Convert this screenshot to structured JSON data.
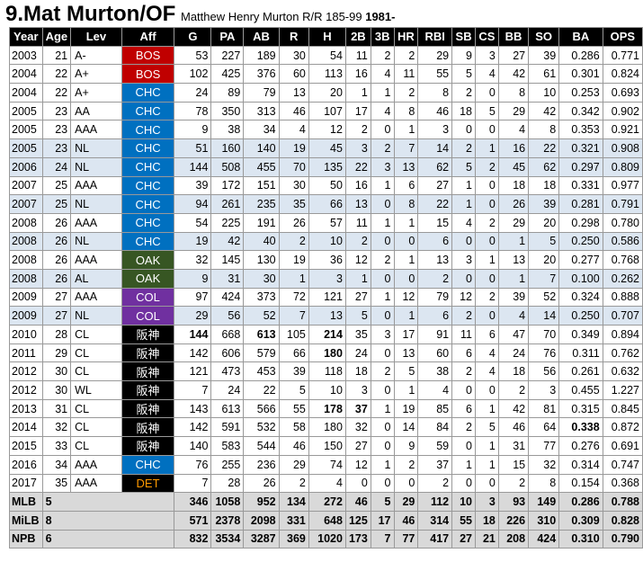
{
  "header": {
    "title": "9.Mat Murton/OF",
    "subtitle": "Matthew Henry Murton R/R 185-99",
    "birth": "1981-"
  },
  "columns": [
    "Year",
    "Age",
    "Lev",
    "Aff",
    "G",
    "PA",
    "AB",
    "R",
    "H",
    "2B",
    "3B",
    "HR",
    "RBI",
    "SB",
    "CS",
    "BB",
    "SO",
    "BA",
    "OPS"
  ],
  "team_colors": {
    "BOS": "#c00000",
    "CHC": "#0070c0",
    "OAK": "#375623",
    "COL": "#7030a0",
    "阪神": "#000000",
    "DET": "#000000"
  },
  "team_text_colors": {
    "DET": "#ff9900"
  },
  "rows": [
    {
      "style": "milb",
      "cells": [
        "2003",
        "21",
        "A-",
        "BOS",
        "53",
        "227",
        "189",
        "30",
        "54",
        "11",
        "2",
        "2",
        "29",
        "9",
        "3",
        "27",
        "39",
        "0.286",
        "0.771"
      ]
    },
    {
      "style": "milb",
      "cells": [
        "2004",
        "22",
        "A+",
        "BOS",
        "102",
        "425",
        "376",
        "60",
        "113",
        "16",
        "4",
        "11",
        "55",
        "5",
        "4",
        "42",
        "61",
        "0.301",
        "0.824"
      ]
    },
    {
      "style": "milb",
      "cells": [
        "2004",
        "22",
        "A+",
        "CHC",
        "24",
        "89",
        "79",
        "13",
        "20",
        "1",
        "1",
        "2",
        "8",
        "2",
        "0",
        "8",
        "10",
        "0.253",
        "0.693"
      ]
    },
    {
      "style": "milb",
      "cells": [
        "2005",
        "23",
        "AA",
        "CHC",
        "78",
        "350",
        "313",
        "46",
        "107",
        "17",
        "4",
        "8",
        "46",
        "18",
        "5",
        "29",
        "42",
        "0.342",
        "0.902"
      ]
    },
    {
      "style": "milb",
      "cells": [
        "2005",
        "23",
        "AAA",
        "CHC",
        "9",
        "38",
        "34",
        "4",
        "12",
        "2",
        "0",
        "1",
        "3",
        "0",
        "0",
        "4",
        "8",
        "0.353",
        "0.921"
      ]
    },
    {
      "style": "mlbLight",
      "cells": [
        "2005",
        "23",
        "NL",
        "CHC",
        "51",
        "160",
        "140",
        "19",
        "45",
        "3",
        "2",
        "7",
        "14",
        "2",
        "1",
        "16",
        "22",
        "0.321",
        "0.908"
      ]
    },
    {
      "style": "mlbLight",
      "cells": [
        "2006",
        "24",
        "NL",
        "CHC",
        "144",
        "508",
        "455",
        "70",
        "135",
        "22",
        "3",
        "13",
        "62",
        "5",
        "2",
        "45",
        "62",
        "0.297",
        "0.809"
      ]
    },
    {
      "style": "milb",
      "cells": [
        "2007",
        "25",
        "AAA",
        "CHC",
        "39",
        "172",
        "151",
        "30",
        "50",
        "16",
        "1",
        "6",
        "27",
        "1",
        "0",
        "18",
        "18",
        "0.331",
        "0.977"
      ]
    },
    {
      "style": "mlbLight",
      "cells": [
        "2007",
        "25",
        "NL",
        "CHC",
        "94",
        "261",
        "235",
        "35",
        "66",
        "13",
        "0",
        "8",
        "22",
        "1",
        "0",
        "26",
        "39",
        "0.281",
        "0.791"
      ]
    },
    {
      "style": "milb",
      "cells": [
        "2008",
        "26",
        "AAA",
        "CHC",
        "54",
        "225",
        "191",
        "26",
        "57",
        "11",
        "1",
        "1",
        "15",
        "4",
        "2",
        "29",
        "20",
        "0.298",
        "0.780"
      ]
    },
    {
      "style": "mlbLight",
      "cells": [
        "2008",
        "26",
        "NL",
        "CHC",
        "19",
        "42",
        "40",
        "2",
        "10",
        "2",
        "0",
        "0",
        "6",
        "0",
        "0",
        "1",
        "5",
        "0.250",
        "0.586"
      ]
    },
    {
      "style": "milb",
      "cells": [
        "2008",
        "26",
        "AAA",
        "OAK",
        "32",
        "145",
        "130",
        "19",
        "36",
        "12",
        "2",
        "1",
        "13",
        "3",
        "1",
        "13",
        "20",
        "0.277",
        "0.768"
      ]
    },
    {
      "style": "mlbLight",
      "cells": [
        "2008",
        "26",
        "AL",
        "OAK",
        "9",
        "31",
        "30",
        "1",
        "3",
        "1",
        "0",
        "0",
        "2",
        "0",
        "0",
        "1",
        "7",
        "0.100",
        "0.262"
      ]
    },
    {
      "style": "milb",
      "cells": [
        "2009",
        "27",
        "AAA",
        "COL",
        "97",
        "424",
        "373",
        "72",
        "121",
        "27",
        "1",
        "12",
        "79",
        "12",
        "2",
        "39",
        "52",
        "0.324",
        "0.888"
      ]
    },
    {
      "style": "mlbLight",
      "cells": [
        "2009",
        "27",
        "NL",
        "COL",
        "29",
        "56",
        "52",
        "7",
        "13",
        "5",
        "0",
        "1",
        "6",
        "2",
        "0",
        "4",
        "14",
        "0.250",
        "0.707"
      ]
    },
    {
      "style": "milb",
      "cells": [
        "2010",
        "28",
        "CL",
        "阪神",
        "144",
        "668",
        "613",
        "105",
        "214",
        "35",
        "3",
        "17",
        "91",
        "11",
        "6",
        "47",
        "70",
        "0.349",
        "0.894"
      ],
      "bold": [
        4,
        6,
        8
      ]
    },
    {
      "style": "milb",
      "cells": [
        "2011",
        "29",
        "CL",
        "阪神",
        "142",
        "606",
        "579",
        "66",
        "180",
        "24",
        "0",
        "13",
        "60",
        "6",
        "4",
        "24",
        "76",
        "0.311",
        "0.762"
      ],
      "bold": [
        8
      ]
    },
    {
      "style": "milb",
      "cells": [
        "2012",
        "30",
        "CL",
        "阪神",
        "121",
        "473",
        "453",
        "39",
        "118",
        "18",
        "2",
        "5",
        "38",
        "2",
        "4",
        "18",
        "56",
        "0.261",
        "0.632"
      ]
    },
    {
      "style": "milb",
      "cells": [
        "2012",
        "30",
        "WL",
        "阪神",
        "7",
        "24",
        "22",
        "5",
        "10",
        "3",
        "0",
        "1",
        "4",
        "0",
        "0",
        "2",
        "3",
        "0.455",
        "1.227"
      ]
    },
    {
      "style": "milb",
      "cells": [
        "2013",
        "31",
        "CL",
        "阪神",
        "143",
        "613",
        "566",
        "55",
        "178",
        "37",
        "1",
        "19",
        "85",
        "6",
        "1",
        "42",
        "81",
        "0.315",
        "0.845"
      ],
      "bold": [
        8,
        9
      ]
    },
    {
      "style": "milb",
      "cells": [
        "2014",
        "32",
        "CL",
        "阪神",
        "142",
        "591",
        "532",
        "58",
        "180",
        "32",
        "0",
        "14",
        "84",
        "2",
        "5",
        "46",
        "64",
        "0.338",
        "0.872"
      ],
      "bold": [
        17
      ]
    },
    {
      "style": "milb",
      "cells": [
        "2015",
        "33",
        "CL",
        "阪神",
        "140",
        "583",
        "544",
        "46",
        "150",
        "27",
        "0",
        "9",
        "59",
        "0",
        "1",
        "31",
        "77",
        "0.276",
        "0.691"
      ]
    },
    {
      "style": "milb",
      "cells": [
        "2016",
        "34",
        "AAA",
        "CHC",
        "76",
        "255",
        "236",
        "29",
        "74",
        "12",
        "1",
        "2",
        "37",
        "1",
        "1",
        "15",
        "32",
        "0.314",
        "0.747"
      ]
    },
    {
      "style": "milb",
      "cells": [
        "2017",
        "35",
        "AAA",
        "DET",
        "7",
        "28",
        "26",
        "2",
        "4",
        "0",
        "0",
        "0",
        "2",
        "0",
        "0",
        "2",
        "8",
        "0.154",
        "0.368"
      ]
    }
  ],
  "totals": [
    {
      "label": "MLB",
      "years": "5",
      "cells": [
        "346",
        "1058",
        "952",
        "134",
        "272",
        "46",
        "5",
        "29",
        "112",
        "10",
        "3",
        "93",
        "149",
        "0.286",
        "0.788"
      ]
    },
    {
      "label": "MiLB",
      "years": "8",
      "cells": [
        "571",
        "2378",
        "2098",
        "331",
        "648",
        "125",
        "17",
        "46",
        "314",
        "55",
        "18",
        "226",
        "310",
        "0.309",
        "0.828"
      ]
    },
    {
      "label": "NPB",
      "years": "6",
      "cells": [
        "832",
        "3534",
        "3287",
        "369",
        "1020",
        "173",
        "7",
        "77",
        "417",
        "27",
        "21",
        "208",
        "424",
        "0.310",
        "0.790"
      ]
    }
  ]
}
